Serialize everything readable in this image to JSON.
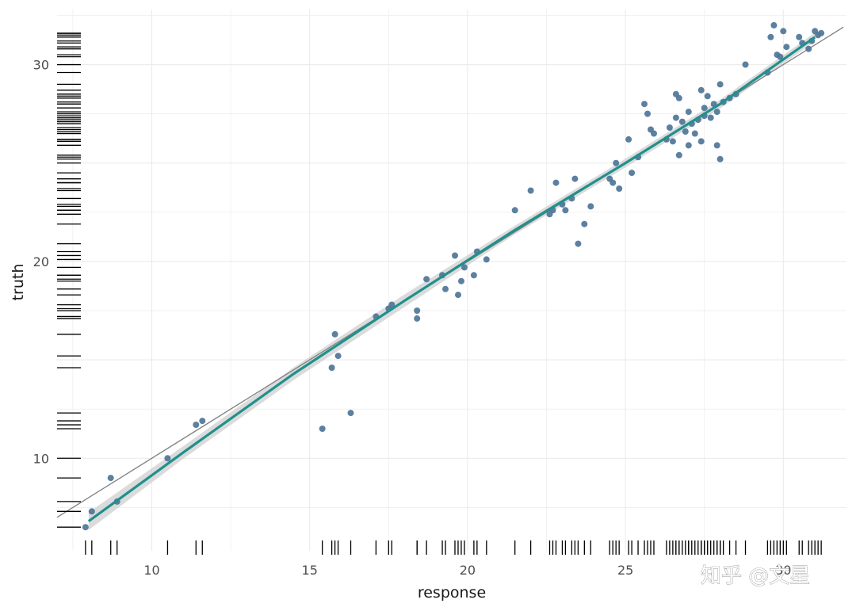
{
  "watermark": "知乎 @文星",
  "chart_data": {
    "type": "scatter",
    "title": "",
    "xlabel": "response",
    "ylabel": "truth",
    "xlim": [
      7.0,
      32.0
    ],
    "ylim": [
      5.3,
      32.8
    ],
    "x_ticks": [
      10,
      15,
      20,
      25,
      30
    ],
    "y_ticks": [
      10,
      20,
      30
    ],
    "x_tick_labels": [
      "10",
      "15",
      "20",
      "25",
      "30"
    ],
    "y_tick_labels": [
      "10",
      "20",
      "30"
    ],
    "grid": true,
    "legend": "none",
    "colors": {
      "points": "#4e7598",
      "smooth_line": "#21908c",
      "ribbon": "#cfcfcf",
      "identity_line": "#7f7f7f",
      "grid": "#ebebeb",
      "rug": "#000000"
    },
    "identity_line": {
      "slope": 1,
      "intercept": 0
    },
    "smooth_line": {
      "x": [
        8.0,
        11.0,
        14.5,
        18.0,
        21.5,
        25.0,
        28.0,
        31.0
      ],
      "y": [
        6.8,
        10.3,
        14.3,
        18.0,
        21.6,
        25.0,
        28.0,
        31.4
      ]
    },
    "points": [
      {
        "x": 7.9,
        "y": 6.5
      },
      {
        "x": 8.1,
        "y": 7.3
      },
      {
        "x": 8.7,
        "y": 9.0
      },
      {
        "x": 8.9,
        "y": 7.8
      },
      {
        "x": 10.5,
        "y": 10.0
      },
      {
        "x": 11.4,
        "y": 11.7
      },
      {
        "x": 11.6,
        "y": 11.9
      },
      {
        "x": 15.4,
        "y": 11.5
      },
      {
        "x": 15.7,
        "y": 14.6
      },
      {
        "x": 15.8,
        "y": 16.3
      },
      {
        "x": 15.9,
        "y": 15.2
      },
      {
        "x": 16.3,
        "y": 12.3
      },
      {
        "x": 17.1,
        "y": 17.2
      },
      {
        "x": 17.5,
        "y": 17.6
      },
      {
        "x": 17.6,
        "y": 17.8
      },
      {
        "x": 18.4,
        "y": 17.5
      },
      {
        "x": 18.4,
        "y": 17.1
      },
      {
        "x": 18.7,
        "y": 19.1
      },
      {
        "x": 19.2,
        "y": 19.3
      },
      {
        "x": 19.3,
        "y": 18.6
      },
      {
        "x": 19.6,
        "y": 20.3
      },
      {
        "x": 19.7,
        "y": 18.3
      },
      {
        "x": 19.8,
        "y": 19.0
      },
      {
        "x": 19.9,
        "y": 19.7
      },
      {
        "x": 20.2,
        "y": 19.3
      },
      {
        "x": 20.3,
        "y": 20.5
      },
      {
        "x": 20.6,
        "y": 20.1
      },
      {
        "x": 21.5,
        "y": 22.6
      },
      {
        "x": 22.0,
        "y": 23.6
      },
      {
        "x": 22.6,
        "y": 22.4
      },
      {
        "x": 22.7,
        "y": 22.6
      },
      {
        "x": 22.8,
        "y": 24.0
      },
      {
        "x": 23.0,
        "y": 22.9
      },
      {
        "x": 23.1,
        "y": 22.6
      },
      {
        "x": 23.3,
        "y": 23.2
      },
      {
        "x": 23.4,
        "y": 24.2
      },
      {
        "x": 23.5,
        "y": 20.9
      },
      {
        "x": 23.7,
        "y": 21.9
      },
      {
        "x": 23.9,
        "y": 22.8
      },
      {
        "x": 24.5,
        "y": 24.2
      },
      {
        "x": 24.6,
        "y": 24.0
      },
      {
        "x": 24.7,
        "y": 25.0
      },
      {
        "x": 24.8,
        "y": 23.7
      },
      {
        "x": 25.1,
        "y": 26.2
      },
      {
        "x": 25.2,
        "y": 24.5
      },
      {
        "x": 25.4,
        "y": 25.3
      },
      {
        "x": 25.6,
        "y": 28.0
      },
      {
        "x": 25.7,
        "y": 27.5
      },
      {
        "x": 25.8,
        "y": 26.7
      },
      {
        "x": 25.9,
        "y": 26.5
      },
      {
        "x": 26.3,
        "y": 26.2
      },
      {
        "x": 26.4,
        "y": 26.8
      },
      {
        "x": 26.5,
        "y": 26.1
      },
      {
        "x": 26.6,
        "y": 28.5
      },
      {
        "x": 26.6,
        "y": 27.3
      },
      {
        "x": 26.7,
        "y": 25.4
      },
      {
        "x": 26.7,
        "y": 28.3
      },
      {
        "x": 26.8,
        "y": 27.1
      },
      {
        "x": 26.9,
        "y": 26.6
      },
      {
        "x": 27.0,
        "y": 27.6
      },
      {
        "x": 27.0,
        "y": 25.9
      },
      {
        "x": 27.1,
        "y": 27.0
      },
      {
        "x": 27.2,
        "y": 26.5
      },
      {
        "x": 27.3,
        "y": 27.2
      },
      {
        "x": 27.4,
        "y": 28.7
      },
      {
        "x": 27.4,
        "y": 26.1
      },
      {
        "x": 27.5,
        "y": 27.8
      },
      {
        "x": 27.5,
        "y": 27.4
      },
      {
        "x": 27.6,
        "y": 28.4
      },
      {
        "x": 27.7,
        "y": 27.3
      },
      {
        "x": 27.8,
        "y": 28.0
      },
      {
        "x": 27.9,
        "y": 25.9
      },
      {
        "x": 27.9,
        "y": 27.6
      },
      {
        "x": 28.0,
        "y": 29.0
      },
      {
        "x": 28.0,
        "y": 25.2
      },
      {
        "x": 28.1,
        "y": 28.1
      },
      {
        "x": 28.3,
        "y": 28.3
      },
      {
        "x": 28.5,
        "y": 28.5
      },
      {
        "x": 28.8,
        "y": 30.0
      },
      {
        "x": 29.5,
        "y": 29.6
      },
      {
        "x": 29.6,
        "y": 31.4
      },
      {
        "x": 29.7,
        "y": 32.0
      },
      {
        "x": 29.8,
        "y": 30.5
      },
      {
        "x": 29.9,
        "y": 30.4
      },
      {
        "x": 30.0,
        "y": 31.7
      },
      {
        "x": 30.1,
        "y": 30.9
      },
      {
        "x": 30.5,
        "y": 31.4
      },
      {
        "x": 30.6,
        "y": 31.1
      },
      {
        "x": 30.8,
        "y": 30.8
      },
      {
        "x": 30.9,
        "y": 31.2
      },
      {
        "x": 31.0,
        "y": 31.7
      },
      {
        "x": 31.1,
        "y": 31.5
      },
      {
        "x": 31.2,
        "y": 31.6
      }
    ]
  }
}
